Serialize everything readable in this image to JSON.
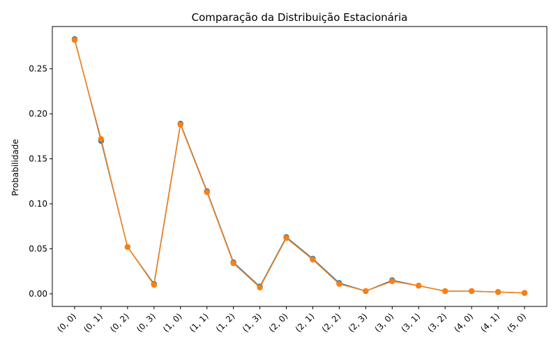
{
  "chart_data": {
    "type": "line",
    "title": "Comparação da Distribuição Estacionária",
    "xlabel": "",
    "ylabel": "Probabilidade",
    "categories": [
      "(0, 0)",
      "(0, 1)",
      "(0, 2)",
      "(0, 3)",
      "(1, 0)",
      "(1, 1)",
      "(1, 2)",
      "(1, 3)",
      "(2, 0)",
      "(2, 1)",
      "(2, 2)",
      "(2, 3)",
      "(3, 0)",
      "(3, 1)",
      "(3, 2)",
      "(4, 0)",
      "(4, 1)",
      "(5, 0)"
    ],
    "ylim": [
      -0.014,
      0.297
    ],
    "yticks": [
      0.0,
      0.05,
      0.1,
      0.15,
      0.2,
      0.25
    ],
    "ytick_labels": [
      "0.00",
      "0.05",
      "0.10",
      "0.15",
      "0.20",
      "0.25"
    ],
    "grid": false,
    "series": [
      {
        "color": "#1f77b4",
        "values": [
          0.283,
          0.17,
          0.052,
          0.011,
          0.189,
          0.114,
          0.035,
          0.008,
          0.063,
          0.039,
          0.012,
          0.003,
          0.015,
          0.009,
          0.003,
          0.003,
          0.002,
          0.001
        ]
      },
      {
        "color": "#ff7f0e",
        "values": [
          0.282,
          0.172,
          0.052,
          0.01,
          0.188,
          0.113,
          0.034,
          0.007,
          0.062,
          0.038,
          0.011,
          0.003,
          0.014,
          0.009,
          0.003,
          0.003,
          0.002,
          0.001
        ]
      }
    ]
  }
}
